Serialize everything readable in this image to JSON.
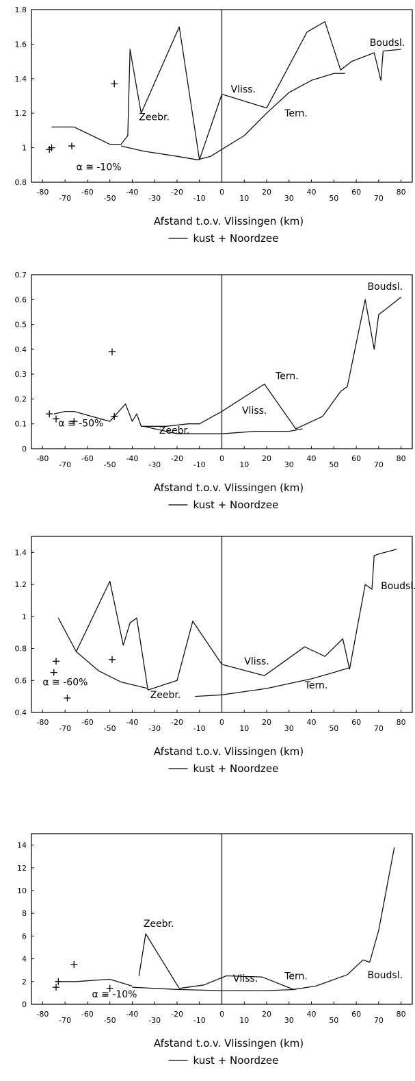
{
  "chart_data": [
    {
      "type": "line",
      "xlabel": "Afstand t.o.v. Vlissingen (km)",
      "legend": "kust + Noordzee",
      "xlim": [
        -85,
        85
      ],
      "ylim": [
        0.8,
        1.8
      ],
      "y_ticks": [
        "0.8",
        "1",
        "1.2",
        "1.4",
        "1.6",
        "1.8"
      ],
      "y_tick_values": [
        0.8,
        1.0,
        1.2,
        1.4,
        1.6,
        1.8
      ],
      "x_ticks": [
        "-80",
        "-70",
        "-60",
        "-50",
        "-40",
        "-30",
        "-20",
        "-10",
        "0",
        "10",
        "20",
        "30",
        "40",
        "50",
        "60",
        "70",
        "80"
      ],
      "x_tick_values": [
        -80,
        -70,
        -60,
        -50,
        -40,
        -30,
        -20,
        -10,
        0,
        10,
        20,
        30,
        40,
        50,
        60,
        70,
        80
      ],
      "series": [
        {
          "x": [
            -76,
            -66,
            -50,
            -45,
            -42,
            -41,
            -39,
            -36,
            -19,
            -10,
            0,
            20,
            38,
            46,
            53,
            58,
            68,
            71,
            72,
            80
          ],
          "y": [
            1.12,
            1.12,
            1.02,
            1.02,
            1.07,
            1.57,
            1.42,
            1.2,
            1.7,
            0.93,
            1.31,
            1.23,
            1.67,
            1.73,
            1.45,
            1.5,
            1.55,
            1.39,
            1.56,
            1.57
          ]
        },
        {
          "x": [
            -45,
            -35,
            -20,
            -11,
            -5,
            0,
            10,
            20,
            30,
            40,
            50,
            55
          ],
          "y": [
            1.01,
            0.98,
            0.95,
            0.93,
            0.95,
            0.99,
            1.07,
            1.2,
            1.32,
            1.39,
            1.43,
            1.43
          ]
        }
      ],
      "markers": {
        "x": [
          -77,
          -76,
          -67,
          -48
        ],
        "y": [
          0.99,
          1.0,
          1.01,
          1.37
        ]
      },
      "annotations": [
        {
          "text": "Zeebr.",
          "x": -37,
          "y": 1.16
        },
        {
          "text": "Vliss.",
          "x": 4,
          "y": 1.32
        },
        {
          "text": "Tern.",
          "x": 28,
          "y": 1.18
        },
        {
          "text": "Boudsl.",
          "x": 66,
          "y": 1.59
        },
        {
          "text": "α ≅ -10%",
          "x": -65,
          "y": 0.87
        }
      ]
    },
    {
      "type": "line",
      "xlabel": "Afstand t.o.v. Vlissingen (km)",
      "legend": "kust + Noordzee",
      "xlim": [
        -85,
        85
      ],
      "ylim": [
        0,
        0.7
      ],
      "y_ticks": [
        "0",
        "0.1",
        "0.2",
        "0.3",
        "0.4",
        "0.5",
        "0.6",
        "0.7"
      ],
      "y_tick_values": [
        0,
        0.1,
        0.2,
        0.3,
        0.4,
        0.5,
        0.6,
        0.7
      ],
      "x_ticks": [
        "-80",
        "-70",
        "-60",
        "-50",
        "-40",
        "-30",
        "-20",
        "-10",
        "0",
        "10",
        "20",
        "30",
        "40",
        "50",
        "60",
        "70",
        "80"
      ],
      "x_tick_values": [
        -80,
        -70,
        -60,
        -50,
        -40,
        -30,
        -20,
        -10,
        0,
        10,
        20,
        30,
        40,
        50,
        60,
        70,
        80
      ],
      "series": [
        {
          "x": [
            -75,
            -70,
            -66,
            -50,
            -46,
            -43,
            -40,
            -38,
            -36,
            -32,
            -25,
            -15,
            -10,
            0,
            19,
            33,
            45,
            53,
            56,
            64,
            68,
            70,
            73,
            80
          ],
          "y": [
            0.14,
            0.15,
            0.15,
            0.11,
            0.15,
            0.18,
            0.11,
            0.14,
            0.09,
            0.09,
            0.09,
            0.1,
            0.1,
            0.15,
            0.26,
            0.08,
            0.13,
            0.23,
            0.25,
            0.6,
            0.4,
            0.54,
            0.56,
            0.61
          ]
        },
        {
          "x": [
            -35,
            -20,
            -15,
            0,
            15,
            30,
            36
          ],
          "y": [
            0.09,
            0.06,
            0.06,
            0.06,
            0.07,
            0.07,
            0.08
          ]
        }
      ],
      "markers": {
        "x": [
          -77,
          -74,
          -66,
          -49,
          -48
        ],
        "y": [
          0.14,
          0.12,
          0.11,
          0.39,
          0.13
        ]
      },
      "annotations": [
        {
          "text": "Boudsl.",
          "x": 65,
          "y": 0.64
        },
        {
          "text": "Tern.",
          "x": 24,
          "y": 0.28
        },
        {
          "text": "Vliss.",
          "x": 9,
          "y": 0.14
        },
        {
          "text": "Zeebr.",
          "x": -28,
          "y": 0.06
        },
        {
          "text": "α ≅ -50%",
          "x": -73,
          "y": 0.09
        }
      ]
    },
    {
      "type": "line",
      "xlabel": "Afstand t.o.v. Vlissingen (km)",
      "legend": "kust + Noordzee",
      "xlim": [
        -85,
        85
      ],
      "ylim": [
        0.4,
        1.5
      ],
      "y_ticks": [
        "0.4",
        "0.6",
        "0.8",
        "1",
        "1.2",
        "1.4"
      ],
      "y_tick_values": [
        0.4,
        0.6,
        0.8,
        1.0,
        1.2,
        1.4
      ],
      "x_ticks": [
        "-80",
        "-70",
        "-60",
        "-50",
        "-40",
        "-30",
        "-20",
        "-10",
        "0",
        "10",
        "20",
        "30",
        "40",
        "50",
        "60",
        "70",
        "80"
      ],
      "x_tick_values": [
        -80,
        -70,
        -60,
        -50,
        -40,
        -30,
        -20,
        -10,
        0,
        10,
        20,
        30,
        40,
        50,
        60,
        70,
        80
      ],
      "series": [
        {
          "x": [
            -73,
            -65,
            -50,
            -44,
            -41,
            -38,
            -33,
            -20,
            -13,
            0,
            19,
            37,
            46,
            54,
            57,
            64,
            67,
            68,
            70,
            78
          ],
          "y": [
            0.99,
            0.78,
            1.22,
            0.82,
            0.96,
            0.99,
            0.54,
            0.6,
            0.97,
            0.7,
            0.63,
            0.81,
            0.75,
            0.86,
            0.67,
            1.2,
            1.17,
            1.38,
            1.39,
            1.42
          ]
        },
        {
          "x": [
            -65,
            -55,
            -45,
            -33
          ],
          "y": [
            0.78,
            0.66,
            0.59,
            0.55
          ]
        },
        {
          "x": [
            -12,
            0,
            10,
            20,
            30,
            40,
            50,
            57
          ],
          "y": [
            0.5,
            0.51,
            0.53,
            0.55,
            0.58,
            0.61,
            0.65,
            0.68
          ]
        }
      ],
      "markers": {
        "x": [
          -74,
          -75,
          -69,
          -49
        ],
        "y": [
          0.72,
          0.65,
          0.49,
          0.73
        ]
      },
      "annotations": [
        {
          "text": "Boudsl.",
          "x": 71,
          "y": 1.17
        },
        {
          "text": "Vliss.",
          "x": 10,
          "y": 0.7
        },
        {
          "text": "Tern.",
          "x": 37,
          "y": 0.55
        },
        {
          "text": "Zeebr.",
          "x": -32,
          "y": 0.49
        },
        {
          "text": "α ≅ -60%",
          "x": -80,
          "y": 0.57
        }
      ]
    },
    {
      "type": "line",
      "xlabel": "Afstand t.o.v. Vlissingen (km)",
      "legend": "kust + Noordzee",
      "xlim": [
        -85,
        85
      ],
      "ylim": [
        0,
        15
      ],
      "y_ticks": [
        "0",
        "2",
        "4",
        "6",
        "8",
        "10",
        "12",
        "14"
      ],
      "y_tick_values": [
        0,
        2,
        4,
        6,
        8,
        10,
        12,
        14
      ],
      "x_ticks": [
        "-80",
        "-70",
        "-60",
        "-50",
        "-40",
        "-30",
        "-20",
        "-10",
        "0",
        "10",
        "20",
        "30",
        "40",
        "50",
        "60",
        "70",
        "80"
      ],
      "x_tick_values": [
        -80,
        -70,
        -60,
        -50,
        -40,
        -30,
        -20,
        -10,
        0,
        10,
        20,
        30,
        40,
        50,
        60,
        70,
        80
      ],
      "series": [
        {
          "x": [
            -73,
            -65,
            -50,
            -40
          ],
          "y": [
            2.0,
            2.0,
            2.2,
            1.6
          ]
        },
        {
          "x": [
            -37,
            -34,
            -19,
            -8,
            2,
            18,
            32,
            42,
            56,
            63,
            66,
            70,
            77
          ],
          "y": [
            2.5,
            6.2,
            1.4,
            1.7,
            2.5,
            2.4,
            1.3,
            1.6,
            2.6,
            3.9,
            3.7,
            6.5,
            13.8
          ]
        },
        {
          "x": [
            -40,
            -20,
            0,
            20,
            33
          ],
          "y": [
            1.5,
            1.3,
            1.2,
            1.2,
            1.3
          ]
        }
      ],
      "markers": {
        "x": [
          -74,
          -73,
          -66,
          -50
        ],
        "y": [
          1.5,
          2.0,
          3.5,
          1.4
        ]
      },
      "annotations": [
        {
          "text": "Zeebr.",
          "x": -35,
          "y": 6.8
        },
        {
          "text": "Vliss.",
          "x": 5,
          "y": 2.0
        },
        {
          "text": "Tern.",
          "x": 28,
          "y": 2.2
        },
        {
          "text": "Boudsl.",
          "x": 65,
          "y": 2.3
        },
        {
          "text": "α ≅ -10%",
          "x": -58,
          "y": 0.6
        }
      ]
    }
  ]
}
